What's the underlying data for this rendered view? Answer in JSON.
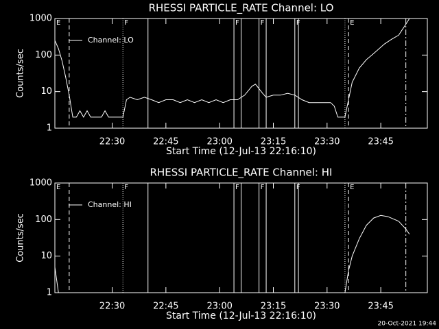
{
  "chart_data": [
    {
      "type": "line",
      "title": "RHESSI PARTICLE_RATE Channel: LO",
      "xlabel": "Start Time (12-Jul-13 22:16:10)",
      "ylabel": "Counts/sec",
      "log_y": true,
      "ylim": [
        1,
        1000
      ],
      "yticks": [
        1,
        10,
        100,
        1000
      ],
      "xlim": [
        "22:14",
        "23:58"
      ],
      "xticks": [
        "22:30",
        "22:45",
        "23:00",
        "23:15",
        "23:30",
        "23:45"
      ],
      "series": [
        {
          "name": "Channel: LO",
          "color": "#ffffff",
          "x": [
            "22:14",
            "22:15",
            "22:16",
            "22:17",
            "22:18",
            "22:19",
            "22:20",
            "22:21",
            "22:22",
            "22:23",
            "22:24",
            "22:27",
            "22:28",
            "22:29",
            "22:32",
            "22:33",
            "22:34",
            "22:35",
            "22:37",
            "22:39",
            "22:41",
            "22:43",
            "22:45",
            "22:47",
            "22:49",
            "22:51",
            "22:53",
            "22:55",
            "22:57",
            "22:59",
            "23:01",
            "23:03",
            "23:05",
            "23:07",
            "23:09",
            "23:10",
            "23:11",
            "23:12",
            "23:13",
            "23:15",
            "23:17",
            "23:19",
            "23:21",
            "23:23",
            "23:25",
            "23:28",
            "23:31",
            "23:32",
            "23:33",
            "23:34",
            "23:35",
            "23:36",
            "23:37",
            "23:39",
            "23:41",
            "23:43",
            "23:46",
            "23:48",
            "23:50",
            "23:52",
            "23:53"
          ],
          "values": [
            250,
            150,
            70,
            25,
            8,
            2,
            2,
            3,
            2,
            3,
            2,
            2,
            3,
            2,
            2,
            2,
            6,
            7,
            6,
            7,
            6,
            5,
            6,
            6,
            5,
            6,
            5,
            6,
            5,
            6,
            5,
            6,
            6,
            8,
            14,
            16,
            12,
            9,
            7,
            8,
            8,
            9,
            8,
            6,
            5,
            5,
            5,
            4,
            2,
            2,
            2,
            6,
            18,
            44,
            75,
            110,
            200,
            270,
            350,
            700,
            1000
          ]
        }
      ],
      "vlines": [
        {
          "x": "22:18",
          "style": "dashed"
        },
        {
          "x": "22:33",
          "style": "dotted"
        },
        {
          "x": "22:40",
          "style": "solid"
        },
        {
          "x": "23:04",
          "style": "solid"
        },
        {
          "x": "23:06",
          "style": "solid"
        },
        {
          "x": "23:11",
          "style": "solid"
        },
        {
          "x": "23:13",
          "style": "solid"
        },
        {
          "x": "23:21",
          "style": "solid"
        },
        {
          "x": "23:22",
          "style": "solid"
        },
        {
          "x": "23:35",
          "style": "dotted"
        },
        {
          "x": "23:36",
          "style": "dashed"
        },
        {
          "x": "23:52",
          "style": "dashdot"
        }
      ],
      "flags": [
        {
          "x": "22:14",
          "text": "E"
        },
        {
          "x": "22:33",
          "text": "F"
        },
        {
          "x": "23:04",
          "text": "F"
        },
        {
          "x": "23:11",
          "text": "F"
        },
        {
          "x": "23:21",
          "text": "F"
        },
        {
          "x": "23:36",
          "text": "E"
        }
      ]
    },
    {
      "type": "line",
      "title": "RHESSI PARTICLE_RATE Channel: HI",
      "xlabel": "Start Time (12-Jul-13 22:16:10)",
      "ylabel": "Counts/sec",
      "log_y": true,
      "ylim": [
        1,
        1000
      ],
      "yticks": [
        1,
        10,
        100,
        1000
      ],
      "xlim": [
        "22:14",
        "23:58"
      ],
      "xticks": [
        "22:30",
        "22:45",
        "23:00",
        "23:15",
        "23:30",
        "23:45"
      ],
      "series": [
        {
          "name": "Channel: HI",
          "color": "#ffffff",
          "x": [
            "22:14",
            "22:15",
            "22:16",
            "23:35",
            "23:36",
            "23:37",
            "23:39",
            "23:41",
            "23:43",
            "23:45",
            "23:47",
            "23:50",
            "23:52",
            "23:53"
          ],
          "values": [
            5,
            1,
            null,
            1,
            4,
            10,
            30,
            70,
            110,
            130,
            120,
            90,
            55,
            40
          ]
        }
      ],
      "vlines": [
        {
          "x": "22:18",
          "style": "dashed"
        },
        {
          "x": "22:33",
          "style": "dotted"
        },
        {
          "x": "22:40",
          "style": "solid"
        },
        {
          "x": "23:04",
          "style": "solid"
        },
        {
          "x": "23:06",
          "style": "solid"
        },
        {
          "x": "23:11",
          "style": "solid"
        },
        {
          "x": "23:13",
          "style": "solid"
        },
        {
          "x": "23:21",
          "style": "solid"
        },
        {
          "x": "23:22",
          "style": "solid"
        },
        {
          "x": "23:35",
          "style": "dotted"
        },
        {
          "x": "23:36",
          "style": "dashed"
        },
        {
          "x": "23:52",
          "style": "dashdot"
        }
      ],
      "flags": [
        {
          "x": "22:14",
          "text": "E"
        },
        {
          "x": "22:33",
          "text": "F"
        },
        {
          "x": "23:04",
          "text": "F"
        },
        {
          "x": "23:11",
          "text": "F"
        },
        {
          "x": "23:21",
          "text": "F"
        },
        {
          "x": "23:36",
          "text": "E"
        }
      ]
    }
  ],
  "footer": "20-Oct-2021 19:44"
}
